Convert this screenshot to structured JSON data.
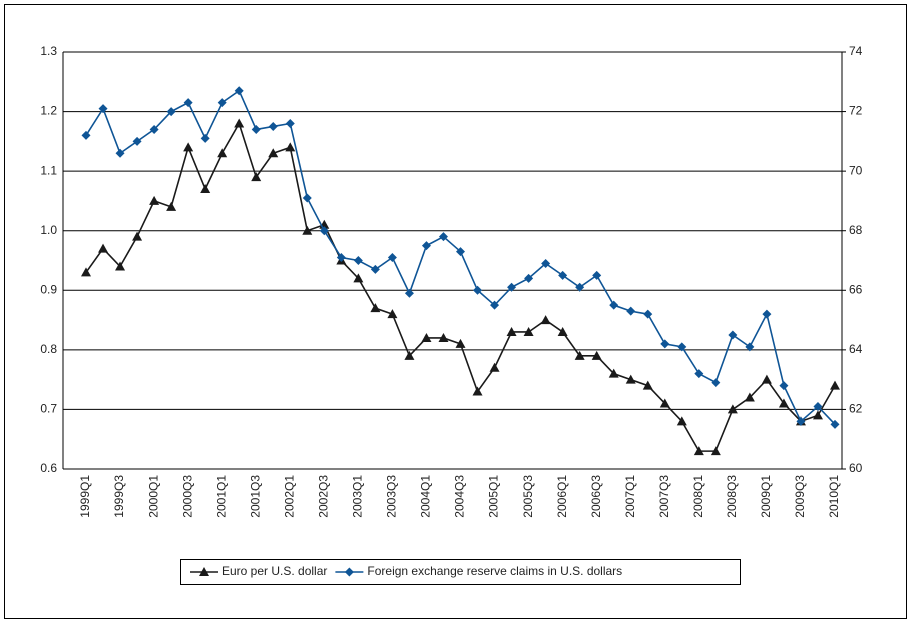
{
  "chart_data": {
    "type": "line",
    "categories": [
      "1999Q1",
      null,
      "1999Q3",
      null,
      "2000Q1",
      null,
      "2000Q3",
      null,
      "2001Q1",
      null,
      "2001Q3",
      null,
      "2002Q1",
      null,
      "2002Q3",
      null,
      "2003Q1",
      null,
      "2003Q3",
      null,
      "2004Q1",
      null,
      "2004Q3",
      null,
      "2005Q1",
      null,
      "2005Q3",
      null,
      "2006Q1",
      null,
      "2006Q3",
      null,
      "2007Q1",
      null,
      "2007Q3",
      null,
      "2008Q1",
      null,
      "2008Q3",
      null,
      "2009Q1",
      null,
      "2009Q3",
      null,
      "2010Q1"
    ],
    "series": [
      {
        "name": "Euro per U.S. dollar",
        "color": "#1a1a1a",
        "marker": "triangle",
        "values": [
          0.93,
          0.97,
          0.94,
          0.99,
          1.05,
          1.04,
          1.14,
          1.07,
          1.13,
          1.18,
          1.09,
          1.13,
          1.14,
          1.0,
          1.01,
          0.95,
          0.92,
          0.87,
          0.86,
          0.79,
          0.82,
          0.82,
          0.81,
          0.73,
          0.77,
          0.83,
          0.83,
          0.85,
          0.83,
          0.79,
          0.79,
          0.76,
          0.75,
          0.74,
          0.71,
          0.68,
          0.63,
          0.63,
          0.7,
          0.72,
          0.75,
          0.71,
          0.68,
          0.69,
          0.74
        ]
      },
      {
        "name": "Foreign exchange reserve claims in U.S. dollars",
        "color": "#0f5596",
        "marker": "diamond",
        "axis": "y2",
        "values": [
          71.2,
          72.1,
          70.6,
          71.0,
          71.4,
          72.0,
          72.3,
          71.1,
          72.3,
          72.7,
          71.4,
          71.5,
          71.6,
          69.1,
          68.0,
          67.1,
          67.0,
          66.7,
          67.1,
          65.9,
          67.5,
          67.8,
          67.3,
          66.0,
          65.5,
          66.1,
          66.4,
          66.9,
          66.5,
          66.1,
          66.5,
          65.5,
          65.3,
          65.2,
          64.2,
          64.1,
          63.2,
          62.9,
          64.5,
          64.1,
          65.2,
          62.8,
          61.6,
          62.1,
          61.5
        ]
      }
    ],
    "ylim": [
      0.6,
      1.3
    ],
    "yticks": [
      0.6,
      0.7,
      0.8,
      0.9,
      {
        "value": 1,
        "label": "1.0"
      },
      1.1,
      1.2,
      1.3
    ],
    "y2lim": [
      60,
      74
    ],
    "y2ticks": [
      60,
      62,
      64,
      66,
      68,
      70,
      72,
      74
    ],
    "grid": true,
    "legend": "bottom"
  }
}
